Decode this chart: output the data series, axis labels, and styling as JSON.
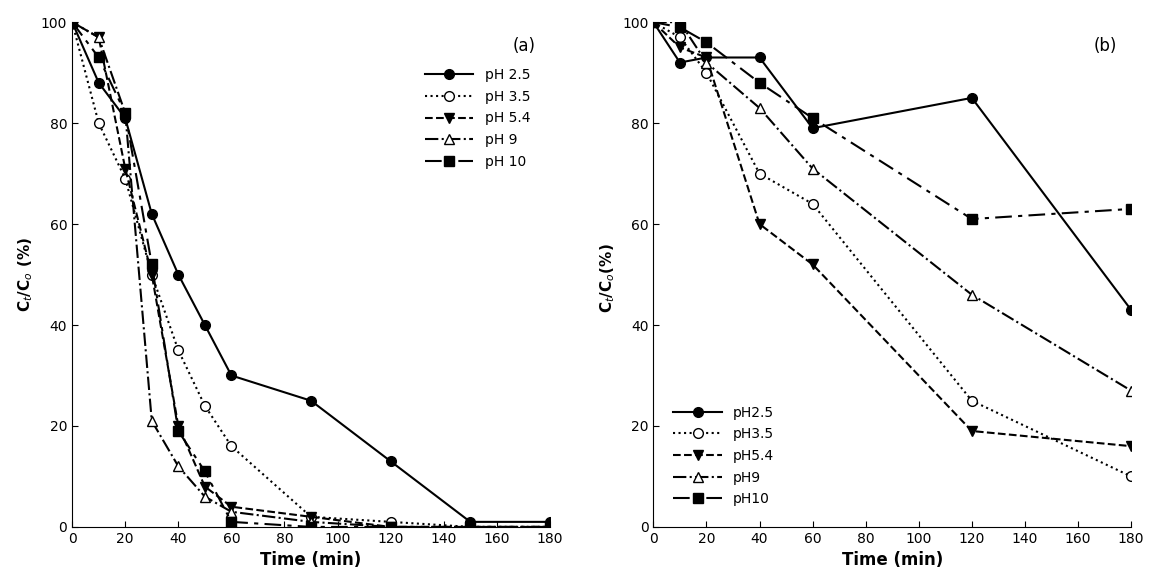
{
  "panel_a": {
    "pH2.5": {
      "x": [
        0,
        10,
        20,
        30,
        40,
        50,
        60,
        90,
        120,
        150,
        180
      ],
      "y": [
        100,
        88,
        81,
        62,
        50,
        40,
        30,
        25,
        13,
        1,
        1
      ]
    },
    "pH3.5": {
      "x": [
        0,
        10,
        20,
        30,
        40,
        50,
        60,
        90,
        120,
        150,
        180
      ],
      "y": [
        100,
        80,
        69,
        50,
        35,
        24,
        16,
        2,
        1,
        0,
        0
      ]
    },
    "pH5.4": {
      "x": [
        0,
        10,
        20,
        30,
        40,
        50,
        60,
        90,
        120,
        150,
        180
      ],
      "y": [
        100,
        97,
        71,
        50,
        20,
        8,
        4,
        2,
        0,
        0,
        0
      ]
    },
    "pH9": {
      "x": [
        0,
        10,
        20,
        30,
        40,
        50,
        60,
        90,
        120,
        150,
        180
      ],
      "y": [
        100,
        97,
        82,
        21,
        12,
        6,
        3,
        1,
        0,
        0,
        0
      ]
    },
    "pH10": {
      "x": [
        0,
        10,
        20,
        30,
        40,
        50,
        60,
        90,
        120,
        150,
        180
      ],
      "y": [
        100,
        93,
        82,
        52,
        19,
        11,
        1,
        0,
        0,
        0,
        0
      ]
    }
  },
  "panel_b": {
    "pH2.5": {
      "x": [
        0,
        10,
        20,
        40,
        60,
        120,
        180
      ],
      "y": [
        100,
        92,
        93,
        93,
        79,
        85,
        43
      ]
    },
    "pH3.5": {
      "x": [
        0,
        10,
        20,
        40,
        60,
        120,
        180
      ],
      "y": [
        100,
        97,
        90,
        70,
        64,
        25,
        10
      ]
    },
    "pH5.4": {
      "x": [
        0,
        10,
        20,
        40,
        60,
        120,
        180
      ],
      "y": [
        100,
        95,
        93,
        60,
        52,
        19,
        16
      ]
    },
    "pH9": {
      "x": [
        0,
        10,
        20,
        40,
        60,
        120,
        180
      ],
      "y": [
        100,
        100,
        92,
        83,
        71,
        46,
        27
      ]
    },
    "pH10": {
      "x": [
        0,
        10,
        20,
        40,
        60,
        120,
        180
      ],
      "y": [
        100,
        99,
        96,
        88,
        81,
        61,
        63
      ]
    }
  },
  "series": [
    {
      "key": "pH2.5",
      "linestyle": "-",
      "marker": "o",
      "filled": true,
      "label_a": "pH 2.5",
      "label_b": "pH2.5"
    },
    {
      "key": "pH3.5",
      "linestyle": ":",
      "marker": "o",
      "filled": false,
      "label_a": "pH 3.5",
      "label_b": "pH3.5"
    },
    {
      "key": "pH5.4",
      "linestyle": "--",
      "marker": "v",
      "filled": true,
      "label_a": "pH 5.4",
      "label_b": "pH5.4"
    },
    {
      "key": "pH9",
      "linestyle": "-.",
      "marker": "^",
      "filled": false,
      "label_a": "pH 9",
      "label_b": "pH9"
    },
    {
      "key": "pH10",
      "linestyle": [
        8,
        3,
        2,
        3
      ],
      "marker": "s",
      "filled": true,
      "label_a": "pH 10",
      "label_b": "pH10"
    }
  ],
  "ylabel_a": "C$_t$/C$_o$ (%)",
  "ylabel_b": "C$_t$/C$_o$(%)  ",
  "xlabel": "Time (min)",
  "xlim": [
    0,
    180
  ],
  "ylim": [
    0,
    100
  ],
  "xticks": [
    0,
    20,
    40,
    60,
    80,
    100,
    120,
    140,
    160,
    180
  ],
  "yticks": [
    0,
    20,
    40,
    60,
    80,
    100
  ],
  "color": "black",
  "markersize": 7,
  "linewidth": 1.5,
  "panel_a_label": "(a)",
  "panel_b_label": "(b)"
}
